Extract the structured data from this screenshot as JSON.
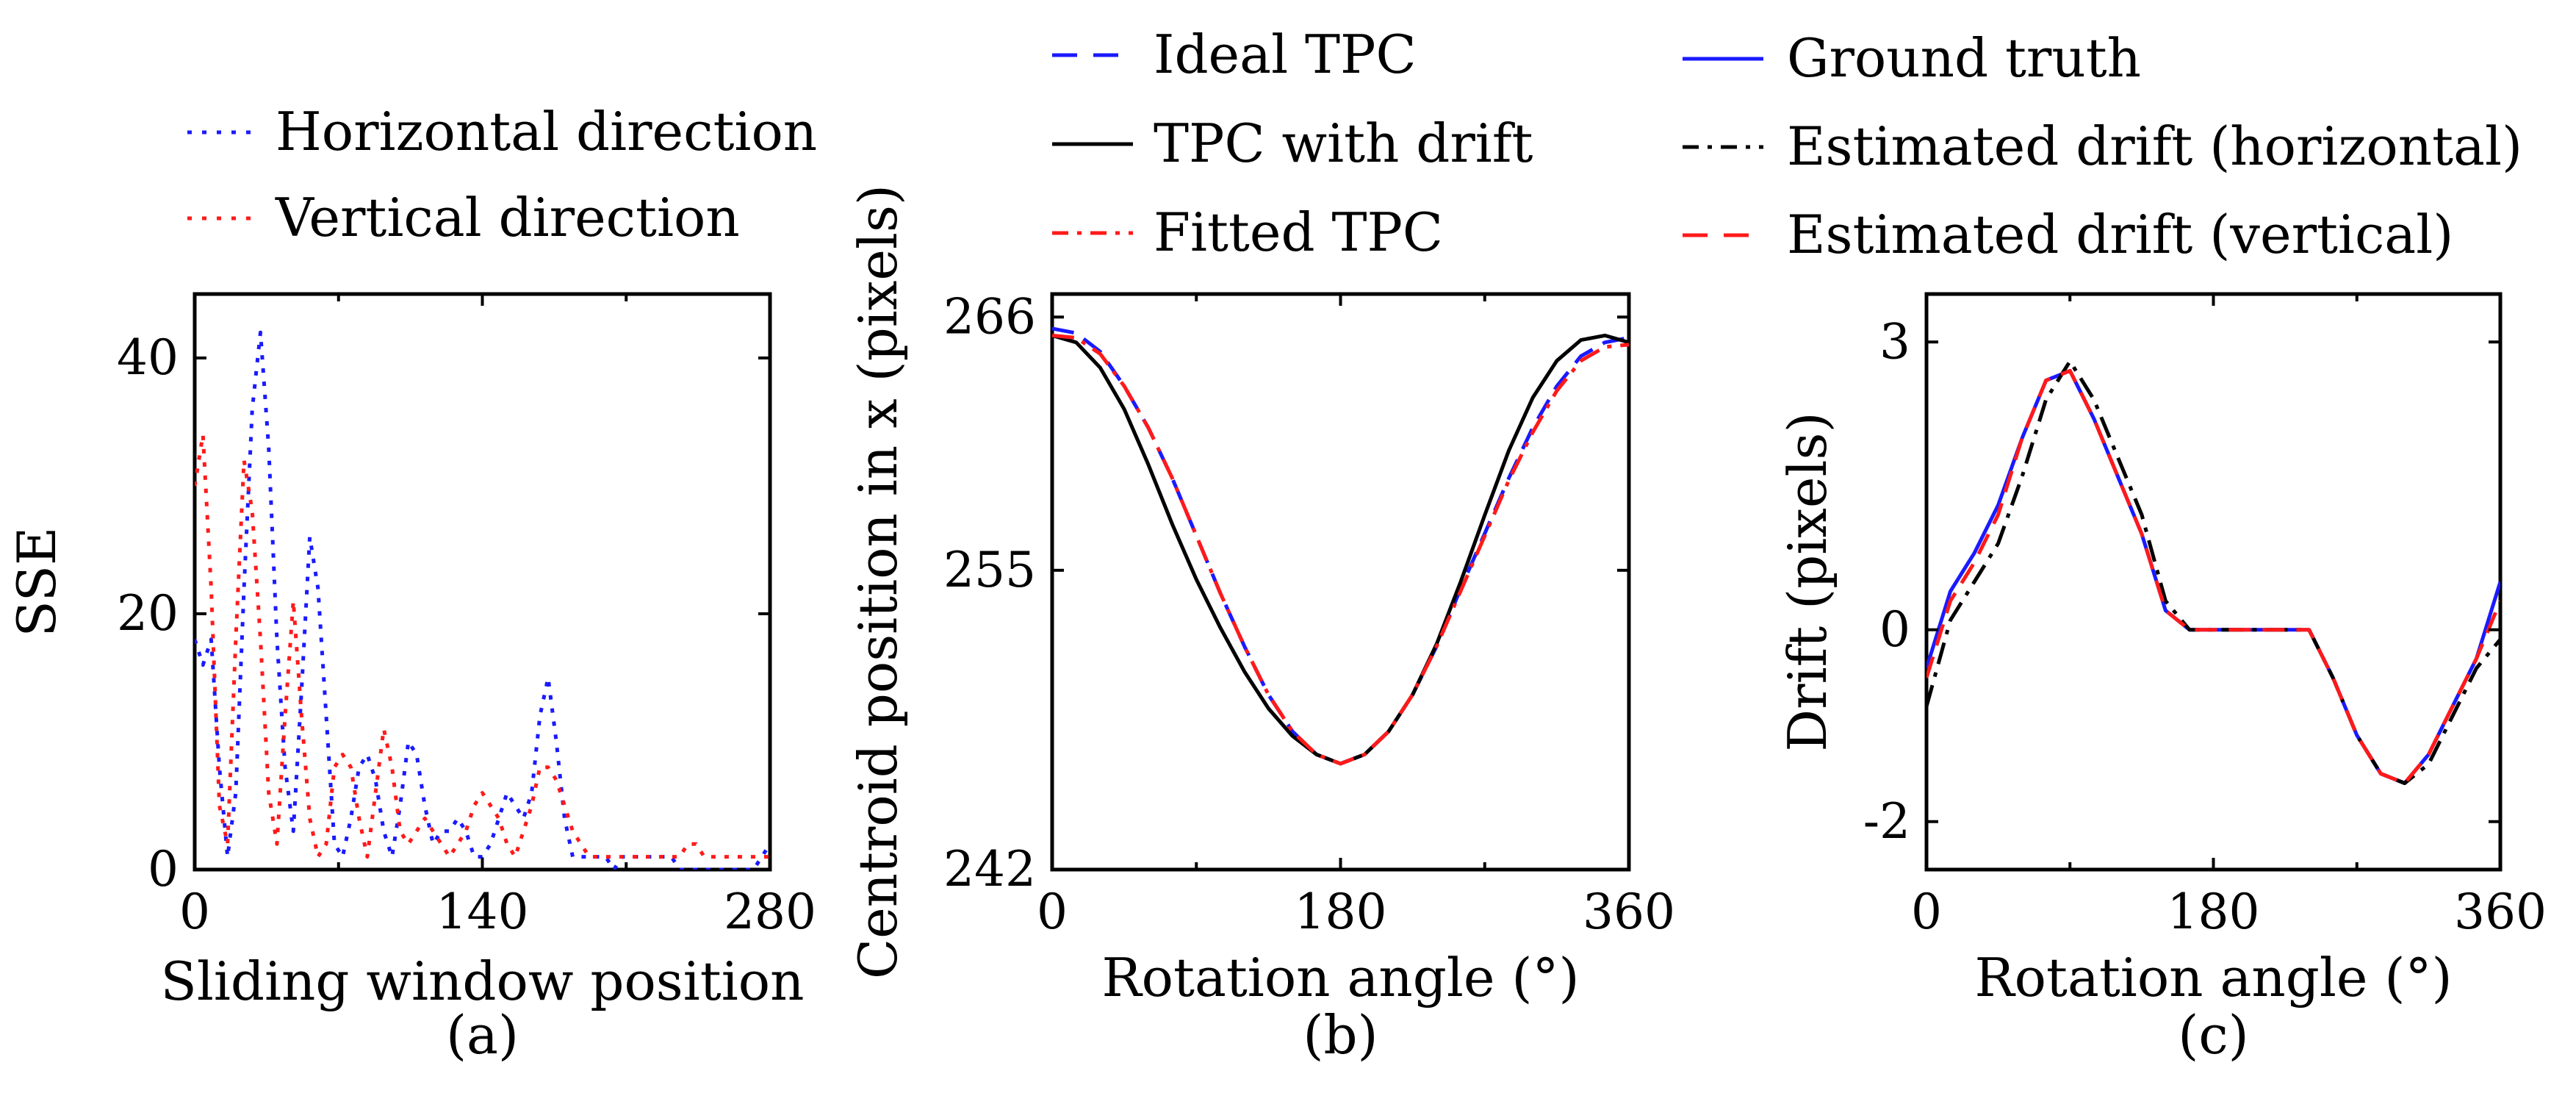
{
  "colors": {
    "blue": "#1a1aff",
    "red": "#ff1a1a",
    "black": "#000000"
  },
  "chart_data": [
    {
      "type": "line",
      "panel_label": "(a)",
      "xlabel": "Sliding window position",
      "ylabel": "SSE",
      "xlim": [
        0,
        280
      ],
      "ylim": [
        0,
        45
      ],
      "xticks": [
        "0",
        "140",
        "280"
      ],
      "yticks": [
        "0",
        "20",
        "40"
      ],
      "legend": [
        {
          "name": "Horizontal direction",
          "style": "dotted",
          "color": "#1a1aff"
        },
        {
          "name": "Vertical direction",
          "style": "dotted",
          "color": "#ff1a1a"
        }
      ],
      "series": [
        {
          "name": "Horizontal direction",
          "style": "dotted",
          "color": "#1a1aff",
          "x": [
            0,
            4,
            8,
            12,
            16,
            20,
            24,
            28,
            32,
            36,
            40,
            44,
            48,
            52,
            56,
            60,
            64,
            68,
            72,
            76,
            80,
            84,
            88,
            92,
            96,
            100,
            104,
            108,
            112,
            116,
            120,
            124,
            128,
            132,
            136,
            140,
            144,
            148,
            152,
            156,
            160,
            164,
            168,
            172,
            176,
            180,
            184,
            188,
            192,
            196,
            200,
            204,
            208,
            212,
            216,
            220,
            224,
            228,
            232,
            236,
            240,
            244,
            248,
            252,
            256,
            260,
            264,
            268,
            272,
            276,
            280
          ],
          "y": [
            18,
            16,
            18,
            8,
            1,
            6,
            22,
            36,
            42,
            33,
            18,
            8,
            3,
            14,
            26,
            22,
            12,
            2,
            1,
            4,
            8,
            9,
            7,
            3,
            1,
            5,
            10,
            9,
            5,
            2,
            3,
            3,
            4,
            3,
            1,
            1,
            2,
            4,
            6,
            5,
            4,
            6,
            12,
            15,
            10,
            4,
            1,
            1,
            1,
            1,
            1,
            0,
            1,
            1,
            1,
            1,
            1,
            1,
            1,
            0,
            0,
            0,
            0,
            0,
            0,
            0,
            0,
            0,
            0,
            1,
            2
          ]
        },
        {
          "name": "Vertical direction",
          "style": "dotted",
          "color": "#ff1a1a",
          "x": [
            0,
            4,
            8,
            12,
            16,
            20,
            24,
            28,
            32,
            36,
            40,
            44,
            48,
            52,
            56,
            60,
            64,
            68,
            72,
            76,
            80,
            84,
            88,
            92,
            96,
            100,
            104,
            108,
            112,
            116,
            120,
            124,
            128,
            132,
            136,
            140,
            144,
            148,
            152,
            156,
            160,
            164,
            168,
            172,
            176,
            180,
            184,
            188,
            192,
            196,
            200,
            204,
            208,
            212,
            216,
            220,
            224,
            228,
            232,
            236,
            240,
            244,
            248,
            252,
            256,
            260,
            264,
            268,
            272,
            276,
            280
          ],
          "y": [
            30,
            34,
            22,
            5,
            2,
            18,
            32,
            28,
            18,
            6,
            2,
            12,
            21,
            12,
            4,
            1,
            2,
            8,
            9,
            8,
            4,
            1,
            6,
            11,
            8,
            3,
            2,
            3,
            4,
            3,
            2,
            1,
            2,
            3,
            5,
            6,
            5,
            4,
            2,
            1,
            3,
            5,
            8,
            8,
            7,
            5,
            3,
            2,
            1,
            1,
            1,
            1,
            1,
            1,
            1,
            1,
            1,
            1,
            1,
            1,
            2,
            2,
            1,
            1,
            1,
            1,
            1,
            1,
            1,
            1,
            1
          ]
        }
      ]
    },
    {
      "type": "line",
      "panel_label": "(b)",
      "xlabel": "Rotation angle (°)",
      "ylabel": "Centroid position in x (pixels)",
      "xlim": [
        0,
        360
      ],
      "ylim": [
        242,
        267
      ],
      "xticks": [
        "0",
        "180",
        "360"
      ],
      "yticks": [
        "242",
        "255",
        "266"
      ],
      "legend": [
        {
          "name": "Ideal TPC",
          "style": "dashed",
          "color": "#1a1aff"
        },
        {
          "name": "TPC with drift",
          "style": "solid",
          "color": "#000000"
        },
        {
          "name": "Fitted TPC",
          "style": "dashdot",
          "color": "#ff1a1a"
        }
      ],
      "series": [
        {
          "name": "Ideal TPC",
          "style": "dashed",
          "color": "#1a1aff",
          "x": [
            0,
            15,
            30,
            45,
            60,
            75,
            90,
            105,
            120,
            135,
            150,
            165,
            180,
            195,
            210,
            225,
            240,
            255,
            270,
            285,
            300,
            315,
            330,
            345,
            360
          ],
          "y": [
            265.5,
            265.3,
            264.5,
            263.0,
            261.2,
            259.0,
            256.5,
            254.0,
            251.7,
            249.6,
            248.0,
            247.0,
            246.6,
            247.0,
            248.0,
            249.6,
            251.7,
            254.2,
            256.6,
            259.0,
            261.2,
            263.0,
            264.3,
            264.9,
            265.1
          ]
        },
        {
          "name": "TPC with drift",
          "style": "solid",
          "color": "#000000",
          "x": [
            0,
            15,
            30,
            45,
            60,
            75,
            90,
            105,
            120,
            135,
            150,
            165,
            180,
            195,
            210,
            225,
            240,
            255,
            270,
            285,
            300,
            315,
            330,
            345,
            360
          ],
          "y": [
            265.2,
            264.9,
            263.8,
            262.0,
            259.6,
            257.0,
            254.6,
            252.5,
            250.6,
            249.0,
            247.8,
            247.0,
            246.6,
            247.0,
            248.0,
            249.6,
            251.8,
            254.5,
            257.4,
            260.2,
            262.5,
            264.1,
            265.0,
            265.2,
            264.9
          ]
        },
        {
          "name": "Fitted TPC",
          "style": "dashdot",
          "color": "#ff1a1a",
          "x": [
            0,
            15,
            30,
            45,
            60,
            75,
            90,
            105,
            120,
            135,
            150,
            165,
            180,
            195,
            210,
            225,
            240,
            255,
            270,
            285,
            300,
            315,
            330,
            345,
            360
          ],
          "y": [
            265.2,
            265.1,
            264.4,
            263.0,
            261.2,
            259.0,
            256.5,
            254.0,
            251.7,
            249.6,
            248.0,
            247.0,
            246.6,
            247.0,
            248.0,
            249.6,
            251.7,
            254.1,
            256.5,
            258.9,
            261.0,
            262.8,
            264.1,
            264.7,
            264.8
          ]
        }
      ]
    },
    {
      "type": "line",
      "panel_label": "(c)",
      "xlabel": "Rotation angle (°)",
      "ylabel": "Drift (pixels)",
      "xlim": [
        0,
        360
      ],
      "ylim": [
        -2.5,
        3.5
      ],
      "xticks": [
        "0",
        "180",
        "360"
      ],
      "yticks": [
        "-2",
        "0",
        "3"
      ],
      "legend": [
        {
          "name": "Ground truth",
          "style": "solid",
          "color": "#1a1aff"
        },
        {
          "name": "Estimated drift (horizontal)",
          "style": "dashdot",
          "color": "#000000"
        },
        {
          "name": "Estimated drift (vertical)",
          "style": "dashed",
          "color": "#ff1a1a"
        }
      ],
      "series": [
        {
          "name": "Ground truth",
          "style": "solid",
          "color": "#1a1aff",
          "x": [
            0,
            15,
            30,
            45,
            60,
            75,
            90,
            105,
            120,
            135,
            150,
            165,
            180,
            195,
            210,
            225,
            240,
            255,
            270,
            285,
            300,
            315,
            330,
            345,
            360
          ],
          "y": [
            -0.4,
            0.4,
            0.8,
            1.3,
            2.0,
            2.6,
            2.7,
            2.2,
            1.6,
            1.0,
            0.2,
            0.0,
            0.0,
            0.0,
            0.0,
            0.0,
            0.0,
            -0.5,
            -1.1,
            -1.5,
            -1.6,
            -1.3,
            -0.8,
            -0.3,
            0.5
          ]
        },
        {
          "name": "Estimated drift (horizontal)",
          "style": "dashdot",
          "color": "#000000",
          "x": [
            0,
            15,
            30,
            45,
            60,
            75,
            90,
            105,
            120,
            135,
            150,
            165,
            180,
            195,
            210,
            225,
            240,
            255,
            270,
            285,
            300,
            315,
            330,
            345,
            360
          ],
          "y": [
            -0.8,
            0.1,
            0.5,
            0.9,
            1.6,
            2.4,
            2.8,
            2.4,
            1.8,
            1.2,
            0.3,
            0.0,
            0.0,
            0.0,
            0.0,
            0.0,
            0.0,
            -0.5,
            -1.1,
            -1.5,
            -1.6,
            -1.4,
            -0.9,
            -0.4,
            -0.1
          ]
        },
        {
          "name": "Estimated drift (vertical)",
          "style": "dashed",
          "color": "#ff1a1a",
          "x": [
            0,
            15,
            30,
            45,
            60,
            75,
            90,
            105,
            120,
            135,
            150,
            165,
            180,
            195,
            210,
            225,
            240,
            255,
            270,
            285,
            300,
            315,
            330,
            345,
            360
          ],
          "y": [
            -0.5,
            0.3,
            0.7,
            1.2,
            2.0,
            2.6,
            2.7,
            2.2,
            1.6,
            1.0,
            0.2,
            0.0,
            0.0,
            0.0,
            0.0,
            0.0,
            0.0,
            -0.5,
            -1.1,
            -1.5,
            -1.6,
            -1.3,
            -0.8,
            -0.3,
            0.3
          ]
        }
      ]
    }
  ]
}
